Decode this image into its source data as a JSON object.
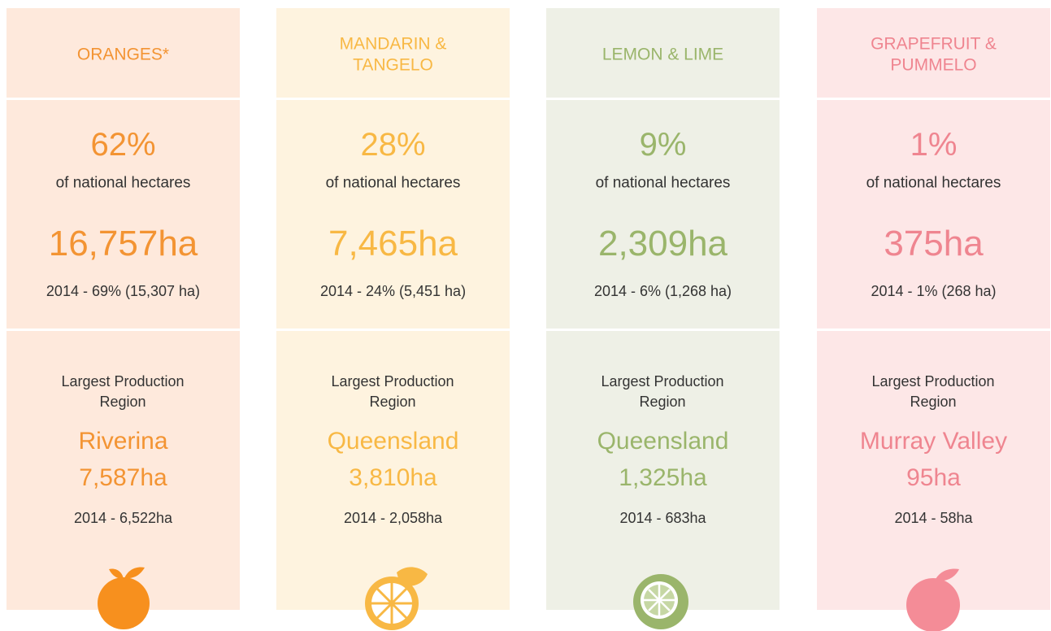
{
  "columns": [
    {
      "title": [
        "ORANGES*"
      ],
      "share": "62%",
      "share_label": "of national hectares",
      "hectares": "16,757ha",
      "prior": "2014 - 69% (15,307 ha)",
      "region_label": "Largest Production Region",
      "region": "Riverina",
      "region_hectares": "7,587ha",
      "region_prior": "2014 - 6,522ha"
    },
    {
      "title": [
        "MANDARIN &",
        "TANGELO"
      ],
      "share": "28%",
      "share_label": "of national hectares",
      "hectares": "7,465ha",
      "prior": "2014 - 24% (5,451 ha)",
      "region_label": "Largest Production Region",
      "region": "Queensland",
      "region_hectares": "3,810ha",
      "region_prior": "2014 - 2,058ha"
    },
    {
      "title": [
        "LEMON & LIME"
      ],
      "share": "9%",
      "share_label": "of national hectares",
      "hectares": "2,309ha",
      "prior": "2014 - 6% (1,268 ha)",
      "region_label": "Largest Production Region",
      "region": "Queensland",
      "region_hectares": "1,325ha",
      "region_prior": "2014 - 683ha"
    },
    {
      "title": [
        "GRAPEFRUIT &",
        "PUMMELO"
      ],
      "share": "1%",
      "share_label": "of national hectares",
      "hectares": "375ha",
      "prior": "2014 - 1% (268 ha)",
      "region_label": "Largest Production Region",
      "region": "Murray Valley",
      "region_hectares": "95ha",
      "region_prior": "2014 - 58ha"
    }
  ]
}
